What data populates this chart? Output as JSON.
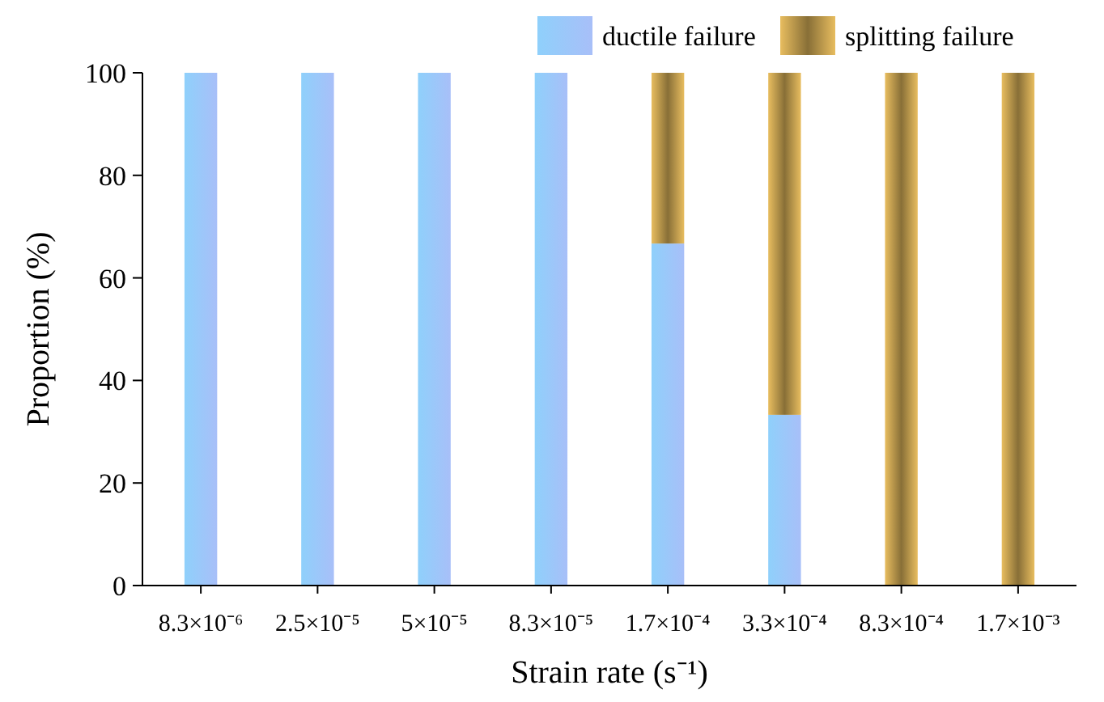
{
  "chart_data": {
    "type": "bar",
    "stacked": true,
    "xlabel": "Strain rate (s⁻¹)",
    "ylabel": "Proportion (%)",
    "categories": [
      "8.3×10⁻⁶",
      "2.5×10⁻⁵",
      "5×10⁻⁵",
      "8.3×10⁻⁵",
      "1.7×10⁻⁴",
      "3.3×10⁻⁴",
      "8.3×10⁻⁴",
      "1.7×10⁻³"
    ],
    "series": [
      {
        "name": "ductile failure",
        "color": "#a8bff8",
        "values": [
          100,
          100,
          100,
          100,
          66.7,
          33.3,
          0,
          0
        ]
      },
      {
        "name": "splitting failure",
        "color": "#c9a452",
        "values": [
          0,
          0,
          0,
          0,
          33.3,
          66.7,
          100,
          100
        ]
      }
    ],
    "ylim": [
      0,
      100
    ],
    "yticks": [
      0,
      20,
      40,
      60,
      80,
      100
    ],
    "grid": false,
    "legend": "top right"
  }
}
